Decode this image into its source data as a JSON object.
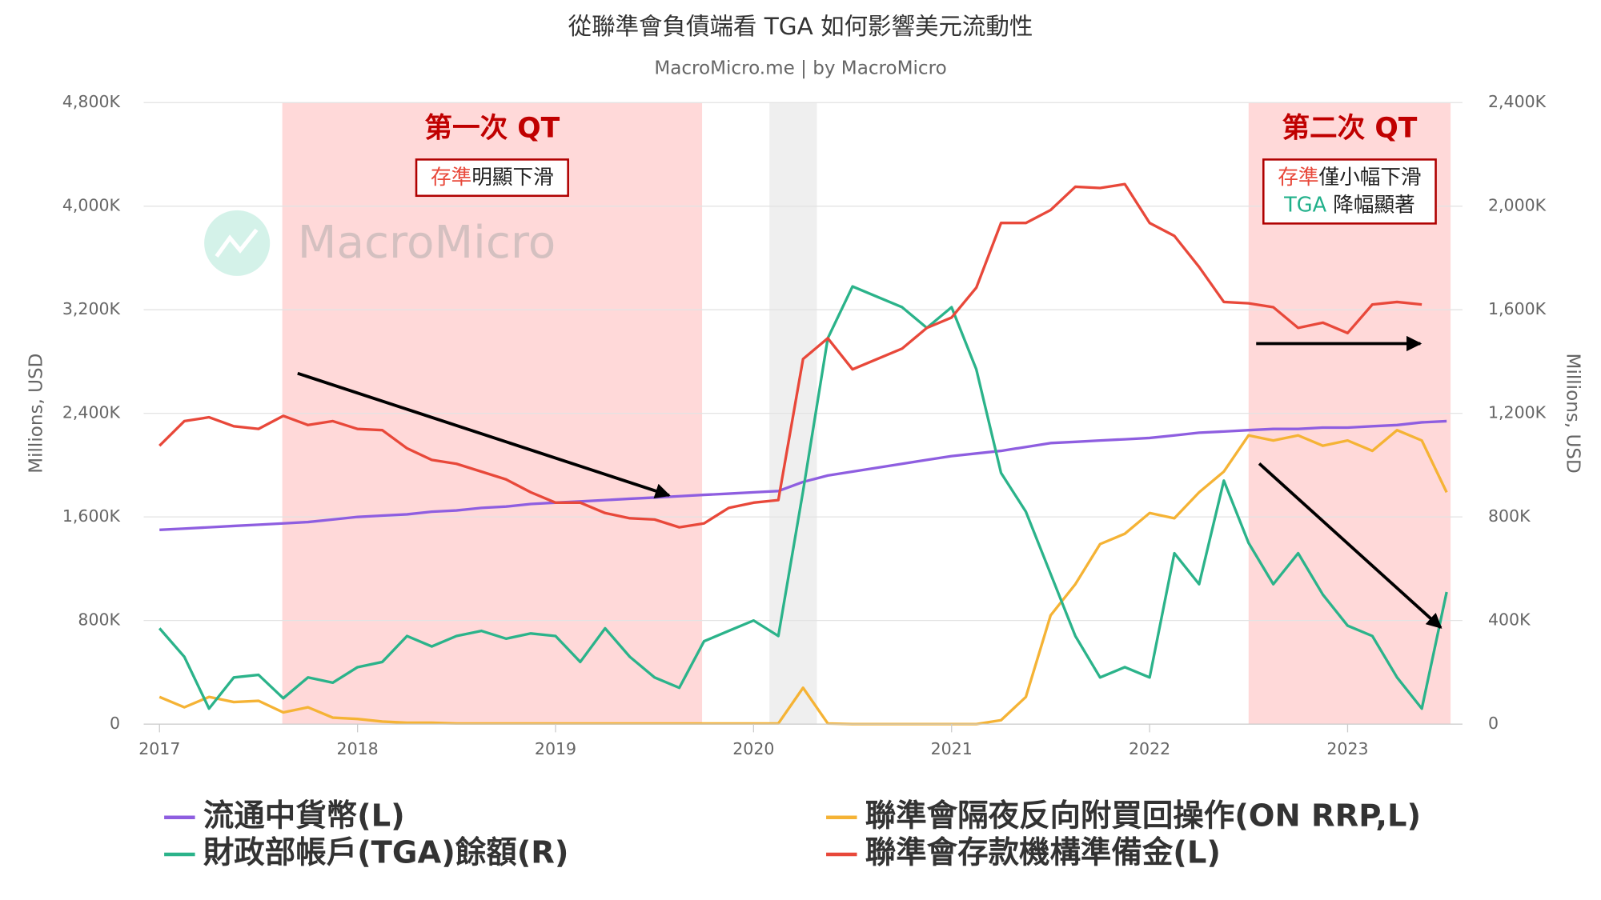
{
  "chart_data": {
    "type": "line",
    "title": "從聯準會負債端看 TGA 如何影響美元流動性",
    "subtitle": "MacroMicro.me | by MacroMicro",
    "watermark": "MacroMicro",
    "y_label": "Millions, USD",
    "y2_label": "Millions, USD",
    "xlim": [
      2016.92,
      2023.58
    ],
    "xticks": [
      2017,
      2018,
      2019,
      2020,
      2021,
      2022,
      2023
    ],
    "ylim": [
      0,
      4800000
    ],
    "yticks": [
      0,
      {
        "value": 800000,
        "label": "800K"
      },
      {
        "value": 1600000,
        "label": "1,600K"
      },
      {
        "value": 2400000,
        "label": "2,400K"
      },
      {
        "value": 3200000,
        "label": "3,200K"
      },
      {
        "value": 4000000,
        "label": "4,000K"
      },
      {
        "value": 4800000,
        "label": "4,800K"
      }
    ],
    "y2lim": [
      0,
      2400000
    ],
    "y2ticks": [
      0,
      {
        "value": 400000,
        "label": "400K"
      },
      {
        "value": 800000,
        "label": "800K"
      },
      {
        "value": 1200000,
        "label": "1,200K"
      },
      {
        "value": 1600000,
        "label": "1,600K"
      },
      {
        "value": 2000000,
        "label": "2,000K"
      },
      {
        "value": 2400000,
        "label": "2,400K"
      }
    ],
    "grid": true,
    "legend": "bottom",
    "bands": [
      {
        "from": 2017.62,
        "to": 2019.74,
        "color": "#ffd9d9"
      },
      {
        "from": 2020.08,
        "to": 2020.32,
        "color": "#efefef"
      },
      {
        "from": 2022.5,
        "to": 2023.52,
        "color": "#ffd9d9"
      }
    ],
    "annotations": [
      {
        "title": "第一次 QT",
        "lines": [
          {
            "key": "存準",
            "key_color": "#e8483a",
            "rest": "明顯下滑"
          }
        ]
      },
      {
        "title": "第二次 QT",
        "lines": [
          {
            "key": "存準",
            "key_color": "#e8483a",
            "rest": "僅小幅下滑"
          },
          {
            "key": "TGA",
            "key_color": "#20b08a",
            "rest": " 降幅顯著"
          }
        ]
      }
    ],
    "x": [
      2017,
      2017.125,
      2017.25,
      2017.375,
      2017.5,
      2017.625,
      2017.75,
      2017.875,
      2018,
      2018.125,
      2018.25,
      2018.375,
      2018.5,
      2018.625,
      2018.75,
      2018.875,
      2019,
      2019.125,
      2019.25,
      2019.375,
      2019.5,
      2019.625,
      2019.75,
      2019.875,
      2020,
      2020.125,
      2020.25,
      2020.375,
      2020.5,
      2020.625,
      2020.75,
      2020.875,
      2021,
      2021.125,
      2021.25,
      2021.375,
      2021.5,
      2021.625,
      2021.75,
      2021.875,
      2022,
      2022.125,
      2022.25,
      2022.375,
      2022.5,
      2022.625,
      2022.75,
      2022.875,
      2023,
      2023.125,
      2023.25,
      2023.375,
      2023.5
    ],
    "series": [
      {
        "name": "流通中貨幣(L)",
        "color": "#8e5ee0",
        "axis": "y",
        "values": [
          1500000,
          1510000,
          1520000,
          1530000,
          1540000,
          1550000,
          1560000,
          1580000,
          1600000,
          1610000,
          1620000,
          1640000,
          1650000,
          1670000,
          1680000,
          1700000,
          1710000,
          1720000,
          1730000,
          1740000,
          1750000,
          1760000,
          1770000,
          1780000,
          1790000,
          1800000,
          1870000,
          1920000,
          1950000,
          1980000,
          2010000,
          2040000,
          2070000,
          2090000,
          2110000,
          2140000,
          2170000,
          2180000,
          2190000,
          2200000,
          2210000,
          2230000,
          2250000,
          2260000,
          2270000,
          2280000,
          2280000,
          2290000,
          2290000,
          2300000,
          2310000,
          2330000,
          2340000
        ]
      },
      {
        "name": "財政部帳戶(TGA)餘額(R)",
        "color": "#2bb38a",
        "axis": "y2",
        "values": [
          370000,
          260000,
          60000,
          180000,
          190000,
          100000,
          180000,
          160000,
          220000,
          240000,
          340000,
          300000,
          340000,
          360000,
          330000,
          350000,
          340000,
          240000,
          370000,
          260000,
          180000,
          140000,
          320000,
          360000,
          400000,
          340000,
          900000,
          1490000,
          1690000,
          1650000,
          1610000,
          1530000,
          1610000,
          1370000,
          970000,
          820000,
          580000,
          340000,
          180000,
          220000,
          180000,
          660000,
          540000,
          940000,
          700000,
          540000,
          660000,
          500000,
          380000,
          340000,
          180000,
          60000,
          510000
        ]
      },
      {
        "name": "聯準會隔夜反向附買回操作(ON RRP,L)",
        "color": "#f5b335",
        "axis": "y",
        "values": [
          210000,
          130000,
          210000,
          170000,
          180000,
          90000,
          130000,
          50000,
          40000,
          20000,
          10000,
          10000,
          5000,
          5000,
          5000,
          5000,
          5000,
          5000,
          5000,
          5000,
          5000,
          5000,
          5000,
          5000,
          5000,
          5000,
          280000,
          5000,
          0,
          0,
          0,
          0,
          0,
          0,
          30000,
          210000,
          840000,
          1080000,
          1390000,
          1470000,
          1630000,
          1590000,
          1790000,
          1950000,
          2230000,
          2190000,
          2230000,
          2150000,
          2190000,
          2110000,
          2270000,
          2190000,
          1790000
        ]
      },
      {
        "name": "聯準會存款機構準備金(L)",
        "color": "#e8483a",
        "axis": "y",
        "values": [
          2150000,
          2340000,
          2370000,
          2300000,
          2280000,
          2380000,
          2310000,
          2340000,
          2280000,
          2270000,
          2130000,
          2040000,
          2010000,
          1950000,
          1890000,
          1790000,
          1710000,
          1710000,
          1630000,
          1590000,
          1580000,
          1520000,
          1550000,
          1670000,
          1710000,
          1730000,
          2820000,
          2980000,
          2740000,
          2820000,
          2900000,
          3060000,
          3140000,
          3370000,
          3870000,
          3870000,
          3970000,
          4150000,
          4140000,
          4170000,
          3870000,
          3770000,
          3530000,
          3260000,
          3250000,
          3220000,
          3060000,
          3100000,
          3020000,
          3240000,
          3260000,
          3240000,
          null
        ]
      }
    ]
  }
}
